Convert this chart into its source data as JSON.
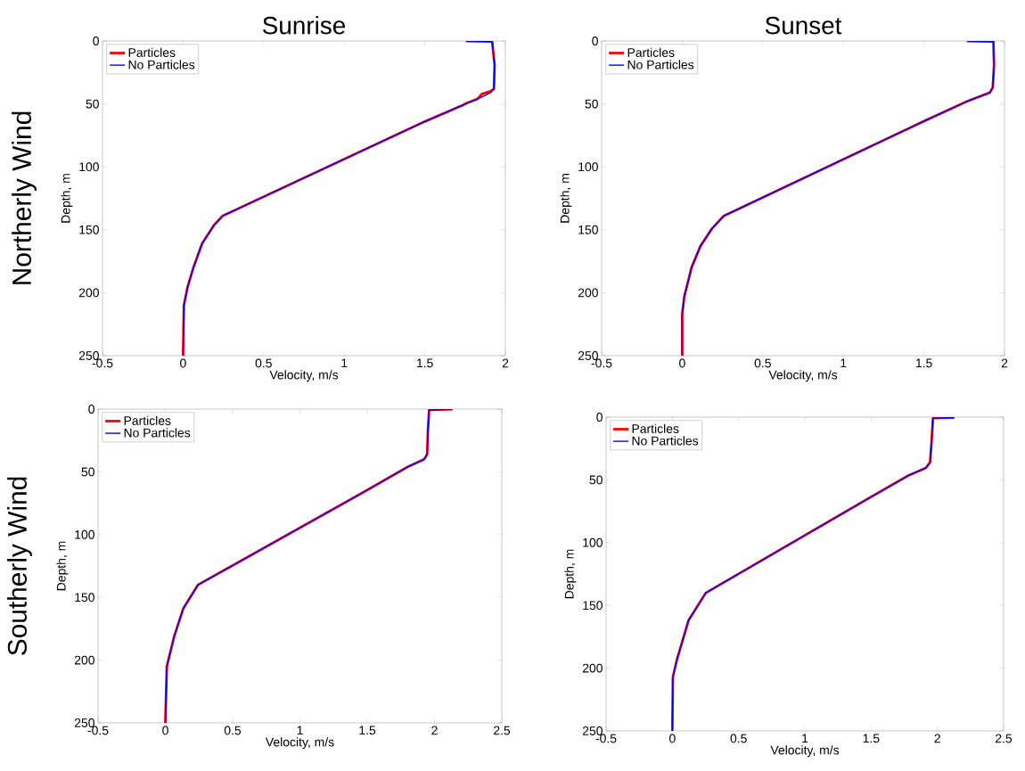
{
  "chart_data": [
    {
      "type": "line",
      "title": "Sunrise",
      "annotations": [
        "Northerly Wind"
      ],
      "xlabel": "Velocity, m/s",
      "ylabel": "Depth, m",
      "xlim": [
        -0.5,
        2
      ],
      "xticks": [
        -0.5,
        0,
        0.5,
        1,
        1.5,
        2
      ],
      "ylim": [
        250,
        0
      ],
      "yticks": [
        0,
        50,
        100,
        150,
        200,
        250
      ],
      "legend": "top left",
      "series": [
        {
          "name": "Particles",
          "color": "#ff0000",
          "x": [
            1.755,
            1.918,
            1.933,
            1.929,
            1.909,
            1.855,
            1.827,
            1.755,
            1.736,
            1.5,
            0.245,
            0.191,
            0.118,
            0.064,
            0.027,
            0.005,
            0
          ],
          "values": [
            0,
            0.5,
            19,
            38,
            40,
            42,
            46,
            49.6,
            51,
            64,
            139,
            146.5,
            161,
            180,
            196,
            210,
            250
          ]
        },
        {
          "name": "No Particles",
          "color": "#0000ff",
          "x": [
            1.755,
            1.918,
            1.933,
            1.929,
            1.909,
            1.845,
            1.736,
            1.5,
            0.245,
            0.191,
            0.118,
            0.064,
            0.027,
            0.005,
            0
          ],
          "values": [
            0,
            0.5,
            19,
            38,
            41,
            45,
            51,
            64,
            139,
            146.5,
            161,
            180,
            196,
            210,
            250
          ]
        }
      ]
    },
    {
      "type": "line",
      "title": "Sunset",
      "xlabel": "Velocity, m/s",
      "ylabel": "Depth, m",
      "xlim": [
        -0.5,
        2
      ],
      "xticks": [
        -0.5,
        0,
        0.5,
        1,
        1.5,
        2
      ],
      "ylim": [
        250,
        0
      ],
      "yticks": [
        0,
        50,
        100,
        150,
        200,
        250
      ],
      "legend": "top left",
      "series": [
        {
          "name": "Particles",
          "color": "#ff0000",
          "x": [
            1.767,
            1.931,
            1.935,
            1.927,
            1.909,
            1.767,
            1.495,
            0.258,
            0.185,
            0.113,
            0.058,
            0.013,
            0,
            0
          ],
          "values": [
            0,
            0.5,
            19,
            37,
            41,
            48,
            64,
            139,
            149,
            163,
            180,
            203,
            217,
            250
          ]
        },
        {
          "name": "No Particles",
          "color": "#0000ff",
          "x": [
            1.767,
            1.931,
            1.935,
            1.927,
            1.909,
            1.767,
            1.495,
            0.258,
            0.185,
            0.113,
            0.058,
            0.013,
            0,
            0
          ],
          "values": [
            0,
            0.5,
            19,
            37,
            41,
            48,
            64,
            139,
            149,
            163,
            180,
            203,
            217,
            250
          ]
        }
      ]
    },
    {
      "type": "line",
      "annotations": [
        "Southerly Wind"
      ],
      "xlabel": "Velocity, m/s",
      "ylabel": "Depth, m",
      "xlim": [
        -0.5,
        2.5
      ],
      "xticks": [
        -0.5,
        0,
        0.5,
        1,
        1.5,
        2,
        2.5
      ],
      "ylim": [
        250,
        0
      ],
      "yticks": [
        0,
        50,
        100,
        150,
        200,
        250
      ],
      "legend": "top left",
      "series": [
        {
          "name": "Particles",
          "color": "#ff0000",
          "x": [
            2.133,
            1.96,
            1.951,
            1.945,
            1.923,
            1.801,
            1.492,
            0.243,
            0.133,
            0.066,
            0.011,
            0
          ],
          "values": [
            0,
            0.7,
            17,
            36,
            40,
            46,
            65,
            140,
            159,
            181,
            205,
            250
          ]
        },
        {
          "name": "No Particles",
          "color": "#0000ff",
          "x": [
            2.133,
            1.96,
            1.951,
            1.945,
            1.923,
            1.801,
            1.492,
            0.243,
            0.133,
            0.066,
            0.011,
            0
          ],
          "values": [
            0,
            0.7,
            17,
            36,
            40,
            46,
            65,
            140,
            159,
            181,
            205,
            250
          ]
        }
      ]
    },
    {
      "type": "line",
      "xlabel": "Velocity, m/s",
      "ylabel": "Depth, m",
      "xlim": [
        -0.5,
        2.5
      ],
      "xticks": [
        -0.5,
        0,
        0.5,
        1,
        1.5,
        2,
        2.5
      ],
      "ylim": [
        250,
        0
      ],
      "yticks": [
        0,
        50,
        100,
        150,
        200,
        250
      ],
      "legend": "top left",
      "series": [
        {
          "name": "Particles",
          "color": "#ff0000",
          "x": [
            2.127,
            1.967,
            1.956,
            1.945,
            1.913,
            1.782,
            1.476,
            0.253,
            0.122,
            0.035,
            0.004,
            0
          ],
          "values": [
            0.4,
            0.8,
            20,
            36,
            40.5,
            46.5,
            65,
            140,
            162,
            193,
            207,
            250
          ]
        },
        {
          "name": "No Particles",
          "color": "#0000ff",
          "x": [
            2.127,
            1.967,
            1.956,
            1.945,
            1.913,
            1.782,
            1.476,
            0.253,
            0.122,
            0.035,
            0.004,
            0
          ],
          "values": [
            0.4,
            0.8,
            20,
            36,
            40.5,
            46.5,
            65,
            140,
            162,
            193,
            207,
            250
          ]
        }
      ]
    }
  ]
}
